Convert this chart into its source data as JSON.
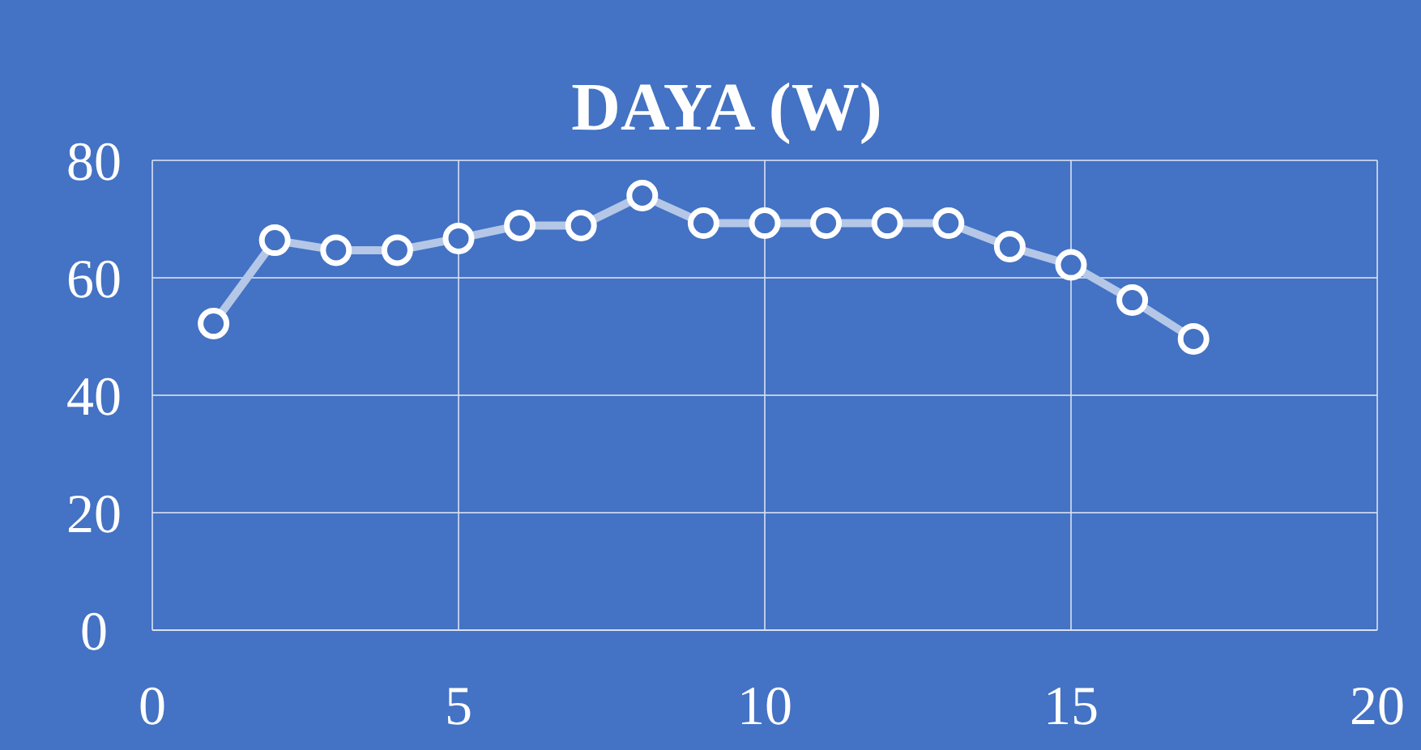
{
  "chart_data": {
    "type": "line",
    "title": "DAYA (W)",
    "x": [
      1,
      2,
      3,
      4,
      5,
      6,
      7,
      8,
      9,
      10,
      11,
      12,
      13,
      14,
      15,
      16,
      17
    ],
    "series": [
      {
        "color": "#b4c7e7",
        "values": [
          52.2,
          66.4,
          64.7,
          64.7,
          66.7,
          68.9,
          68.9,
          74,
          69.3,
          69.3,
          69.3,
          69.3,
          69.3,
          65.3,
          62.2,
          56.2,
          49.6
        ]
      }
    ],
    "xlim": [
      0,
      20
    ],
    "xticks": [
      0,
      5,
      10,
      15,
      20
    ],
    "ylim": [
      0,
      80
    ],
    "yticks": [
      0,
      20,
      40,
      60,
      80
    ],
    "grid": true,
    "marker": "circle",
    "line_style": "solid"
  }
}
